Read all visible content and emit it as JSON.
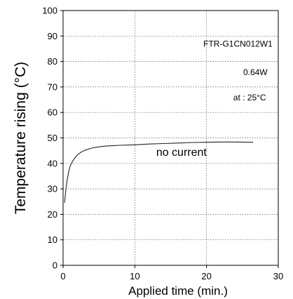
{
  "chart_data": {
    "type": "line",
    "xlabel": "Applied time (min.)",
    "ylabel": "Temperature rising (°C)",
    "xlim": [
      0,
      30
    ],
    "ylim": [
      0,
      100
    ],
    "xticks": [
      0,
      10,
      20,
      30
    ],
    "yticks": [
      0,
      10,
      20,
      30,
      40,
      50,
      60,
      70,
      80,
      90,
      100
    ],
    "grid": true,
    "annotations": [
      "FTR-G1CN012W1",
      "0.64W",
      "at : 25°C"
    ],
    "series": [
      {
        "name": "no current",
        "x": [
          0.2,
          0.4,
          0.6,
          0.8,
          1.0,
          1.3,
          1.6,
          2.0,
          2.5,
          3.0,
          3.5,
          4.0,
          5.0,
          6.0,
          7.0,
          8.0,
          9.0,
          10.0,
          12.0,
          14.0,
          16.0,
          18.0,
          20.0,
          22.0,
          24.0,
          26.5
        ],
        "values": [
          24.5,
          30.0,
          34.0,
          37.0,
          39.0,
          40.7,
          42.0,
          43.4,
          44.4,
          45.1,
          45.6,
          46.0,
          46.5,
          46.8,
          47.0,
          47.1,
          47.2,
          47.3,
          47.6,
          47.8,
          48.0,
          48.2,
          48.3,
          48.4,
          48.4,
          48.3
        ]
      }
    ]
  }
}
